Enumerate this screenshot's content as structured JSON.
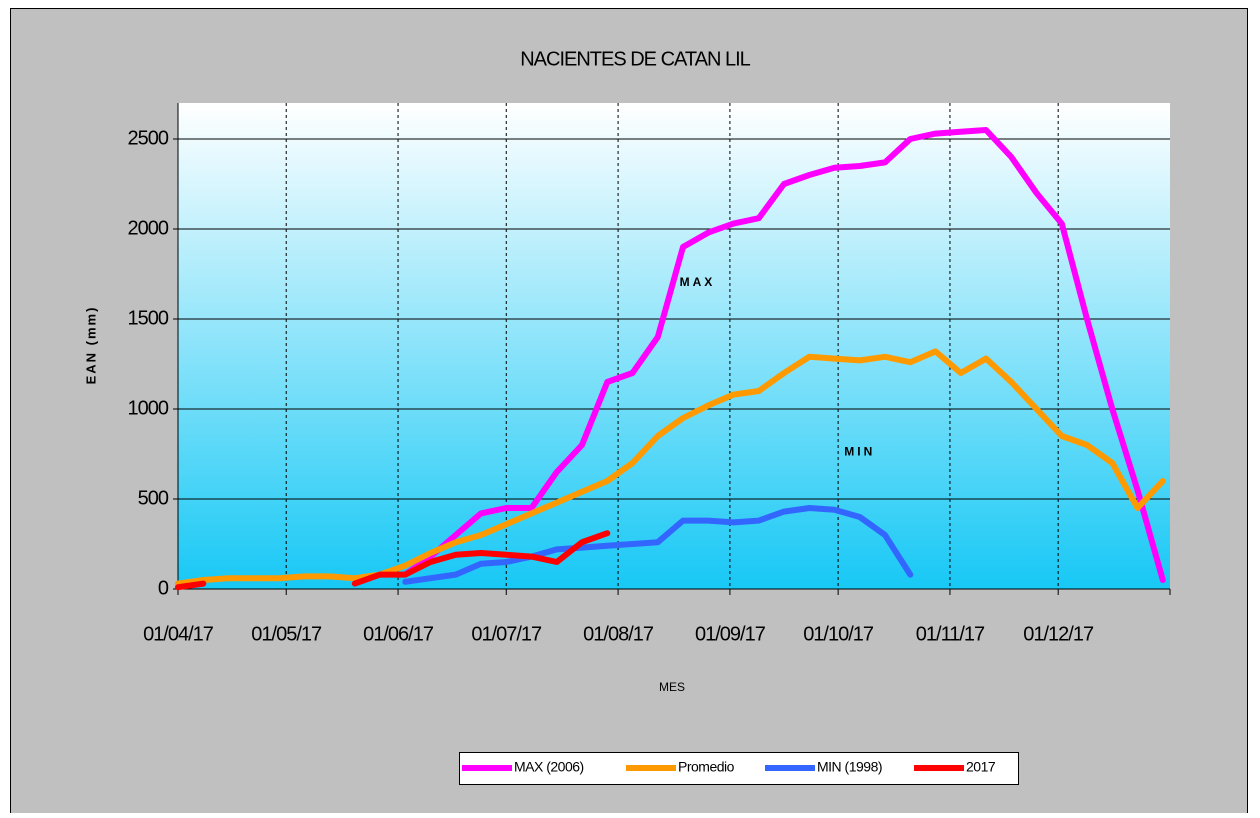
{
  "chart_data": {
    "type": "line",
    "title": "NACIENTES DE CATAN LIL",
    "x_label": "MES",
    "y_label": "EAN (mm)",
    "annotations": [
      {
        "text": "MAX",
        "x": "2017-08-23",
        "y": 1700,
        "color": "#ff00ff"
      },
      {
        "text": "MIN",
        "x": "2017-10-07",
        "y": 760,
        "color": "#0033cc"
      }
    ],
    "x": [
      "2017-04-01",
      "2017-04-08",
      "2017-04-15",
      "2017-04-22",
      "2017-04-29",
      "2017-05-06",
      "2017-05-13",
      "2017-05-20",
      "2017-05-27",
      "2017-06-03",
      "2017-06-10",
      "2017-06-17",
      "2017-06-24",
      "2017-07-01",
      "2017-07-08",
      "2017-07-15",
      "2017-07-22",
      "2017-07-29",
      "2017-08-05",
      "2017-08-12",
      "2017-08-19",
      "2017-08-26",
      "2017-09-02",
      "2017-09-09",
      "2017-09-16",
      "2017-09-23",
      "2017-09-30",
      "2017-10-07",
      "2017-10-14",
      "2017-10-21",
      "2017-10-28",
      "2017-11-04",
      "2017-11-11",
      "2017-11-18",
      "2017-11-25",
      "2017-12-02",
      "2017-12-09",
      "2017-12-16",
      "2017-12-23",
      "2017-12-30"
    ],
    "series": [
      {
        "name": "MAX (2006)",
        "color": "#ff00ff",
        "values": [
          null,
          null,
          null,
          null,
          null,
          null,
          null,
          null,
          null,
          80,
          180,
          300,
          420,
          450,
          450,
          650,
          800,
          1150,
          1200,
          1400,
          1900,
          1980,
          2030,
          2060,
          2250,
          2300,
          2340,
          2350,
          2370,
          2500,
          2530,
          2540,
          2550,
          2400,
          2200,
          2030,
          1500,
          1000,
          550,
          50
        ]
      },
      {
        "name": "Promedio",
        "color": "#ff9900",
        "values": [
          30,
          50,
          60,
          60,
          60,
          70,
          70,
          60,
          80,
          130,
          200,
          260,
          300,
          360,
          420,
          480,
          540,
          600,
          700,
          850,
          950,
          1020,
          1080,
          1100,
          1200,
          1290,
          1280,
          1270,
          1290,
          1260,
          1320,
          1200,
          1280,
          1150,
          1000,
          850,
          800,
          700,
          450,
          600
        ]
      },
      {
        "name": "MIN (1998)",
        "color": "#3366ff",
        "values": [
          null,
          null,
          null,
          null,
          null,
          null,
          null,
          null,
          null,
          40,
          60,
          80,
          140,
          150,
          180,
          220,
          230,
          240,
          250,
          260,
          380,
          380,
          370,
          380,
          430,
          450,
          440,
          400,
          300,
          80,
          null,
          null,
          null,
          null,
          null,
          null,
          null,
          null,
          null,
          null
        ]
      },
      {
        "name": "2017",
        "color": "#ff0000",
        "values": [
          10,
          30,
          null,
          null,
          null,
          null,
          null,
          30,
          80,
          80,
          150,
          190,
          200,
          190,
          180,
          150,
          260,
          310,
          null,
          null,
          null,
          null,
          null,
          null,
          null,
          null,
          null,
          null,
          null,
          null,
          null,
          null,
          null,
          null,
          null,
          null,
          null,
          null,
          null,
          null
        ]
      }
    ],
    "xlim": [
      "2017-04-01",
      "2018-01-01"
    ],
    "xticks": [
      {
        "value": "2017-04-01",
        "label": "01/04/17"
      },
      {
        "value": "2017-05-01",
        "label": "01/05/17"
      },
      {
        "value": "2017-06-01",
        "label": "01/06/17"
      },
      {
        "value": "2017-07-01",
        "label": "01/07/17"
      },
      {
        "value": "2017-08-01",
        "label": "01/08/17"
      },
      {
        "value": "2017-09-01",
        "label": "01/09/17"
      },
      {
        "value": "2017-10-01",
        "label": "01/10/17"
      },
      {
        "value": "2017-11-01",
        "label": "01/11/17"
      },
      {
        "value": "2017-12-01",
        "label": "01/12/17"
      }
    ],
    "ylim": [
      0,
      2700
    ],
    "yticks": [
      0,
      500,
      1000,
      1500,
      2000,
      2500
    ],
    "grid": true,
    "legend": "bottom"
  }
}
